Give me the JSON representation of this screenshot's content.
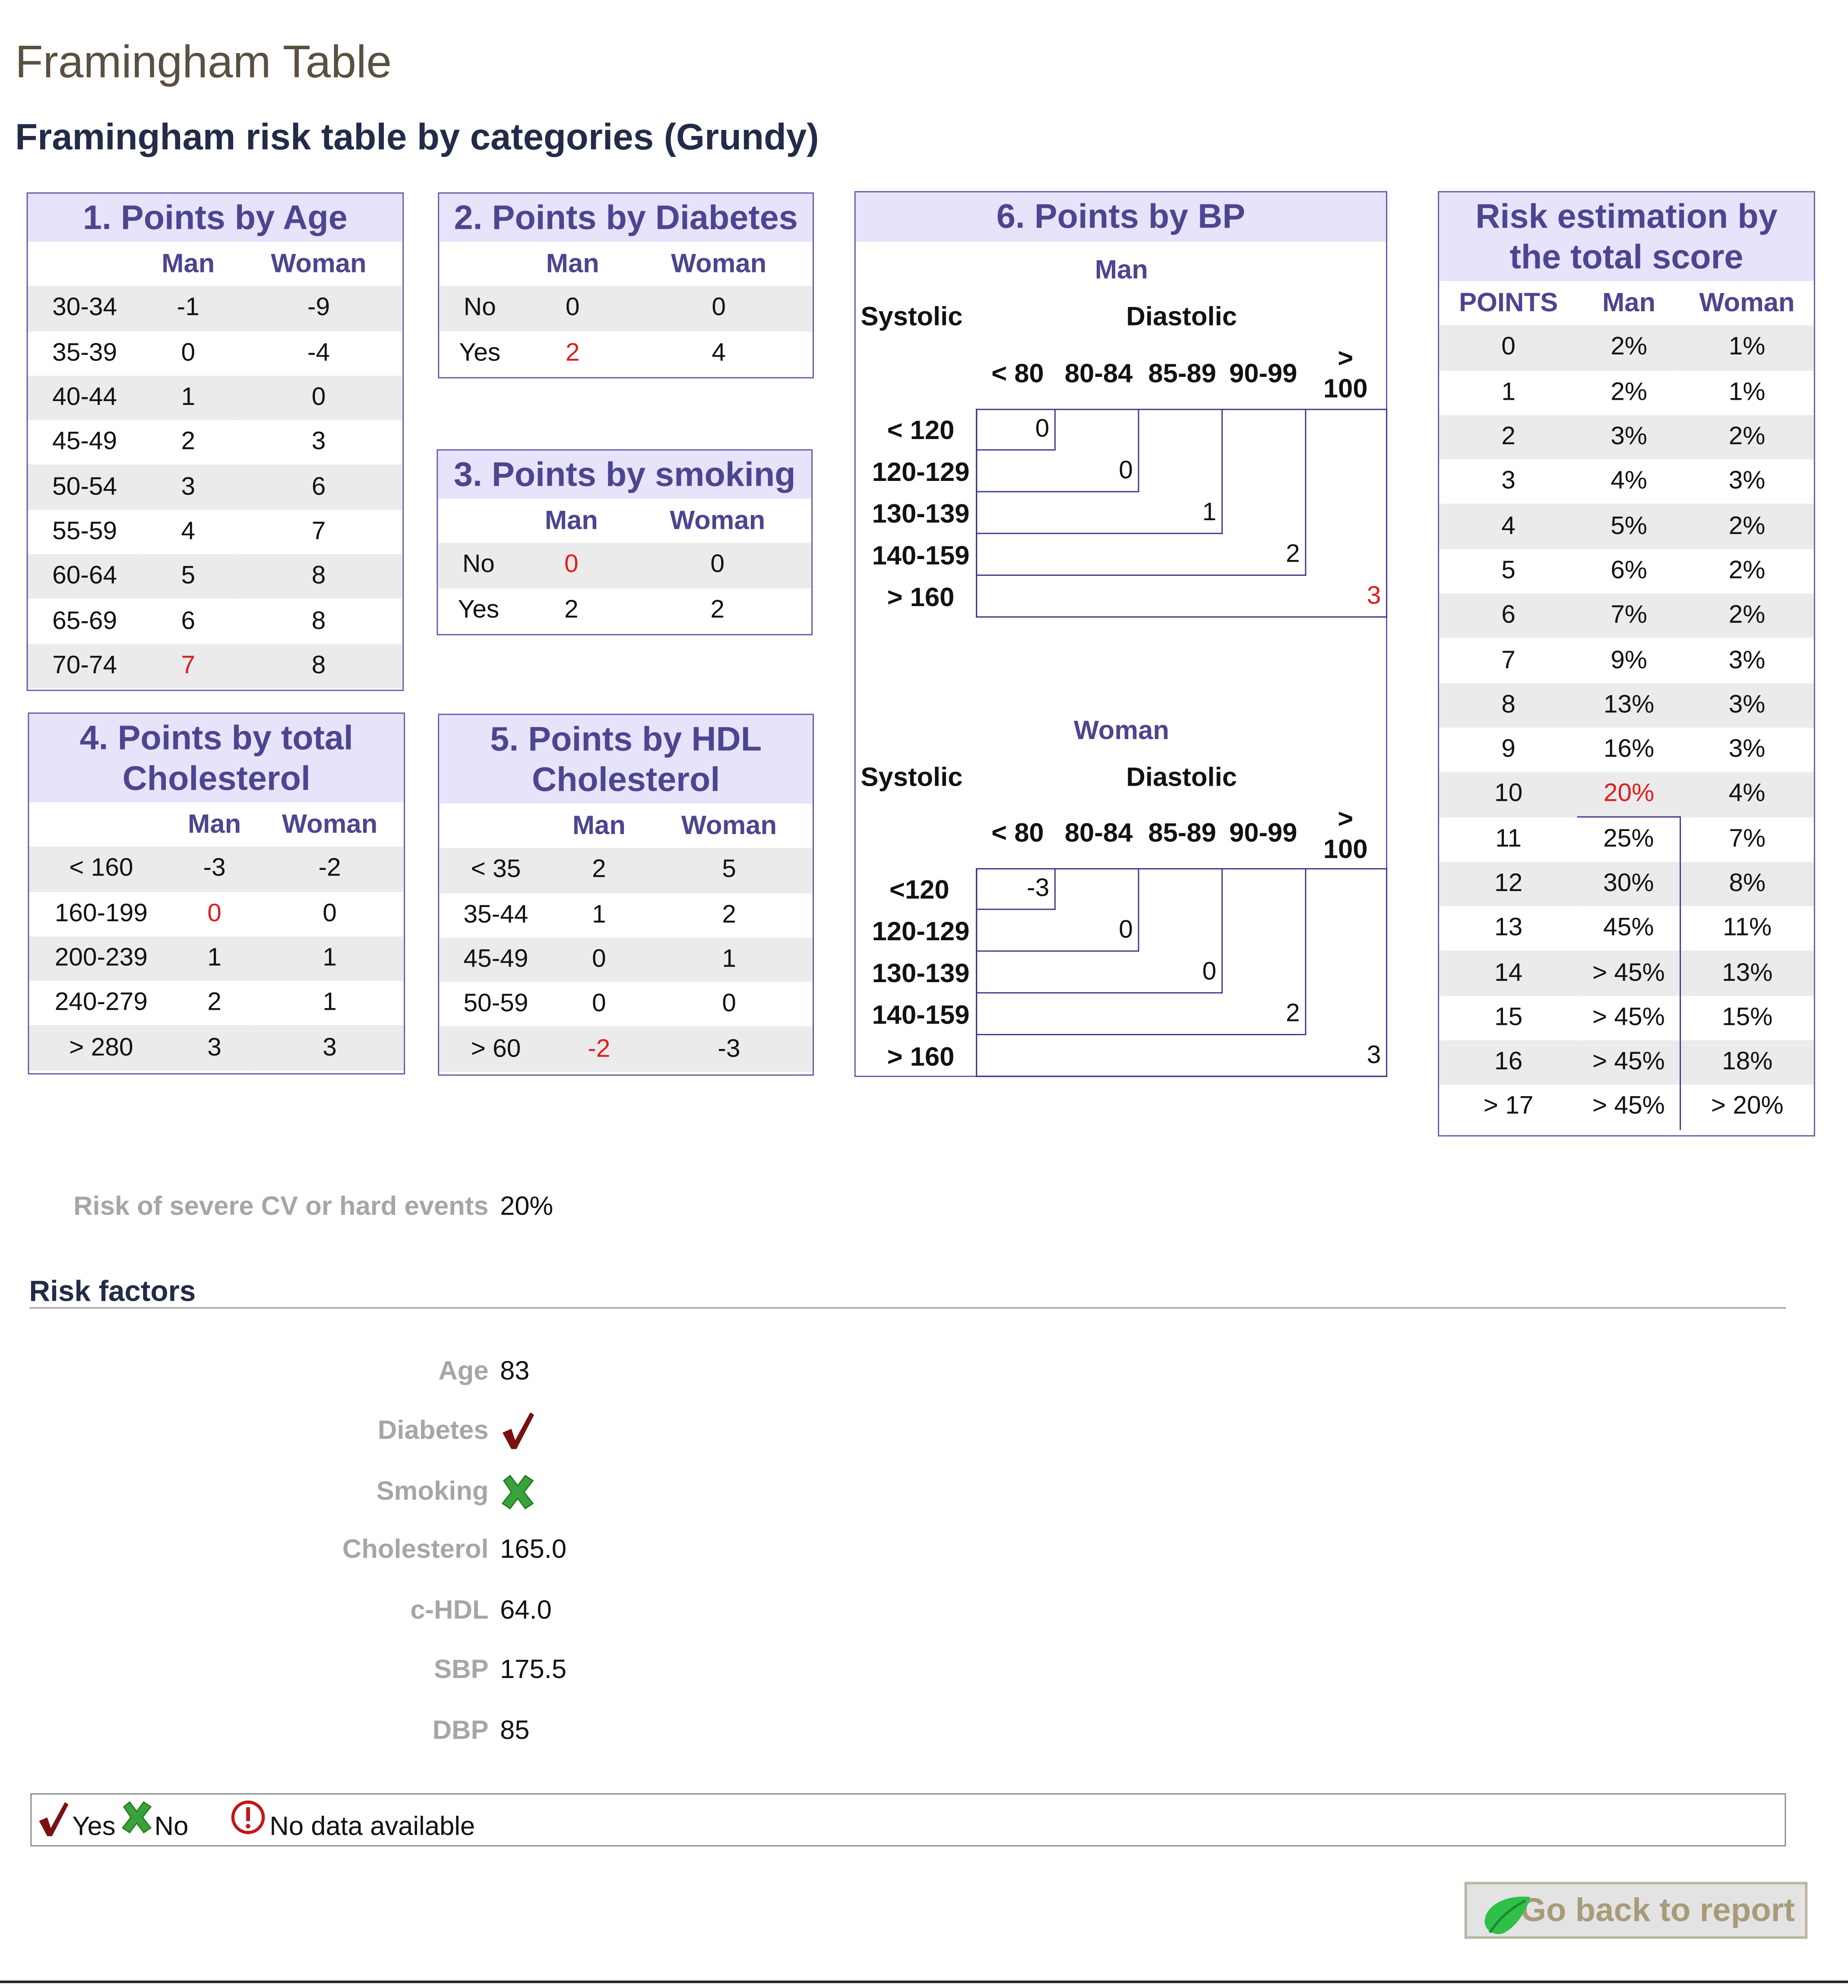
{
  "page": {
    "title": "Framingham Table",
    "subtitle": "Framingham risk table by categories (Grundy)"
  },
  "age": {
    "title": "1. Points by Age",
    "cols": [
      "Man",
      "Woman"
    ],
    "rows": [
      {
        "label": "30-34",
        "man": "-1",
        "woman": "-9"
      },
      {
        "label": "35-39",
        "man": "0",
        "woman": "-4"
      },
      {
        "label": "40-44",
        "man": "1",
        "woman": "0"
      },
      {
        "label": "45-49",
        "man": "2",
        "woman": "3"
      },
      {
        "label": "50-54",
        "man": "3",
        "woman": "6"
      },
      {
        "label": "55-59",
        "man": "4",
        "woman": "7"
      },
      {
        "label": "60-64",
        "man": "5",
        "woman": "8"
      },
      {
        "label": "65-69",
        "man": "6",
        "woman": "8"
      },
      {
        "label": "70-74",
        "man": "7",
        "woman": "8"
      }
    ]
  },
  "diabetes": {
    "title": "2. Points by Diabetes",
    "cols": [
      "Man",
      "Woman"
    ],
    "rows": [
      {
        "label": "No",
        "man": "0",
        "woman": "0"
      },
      {
        "label": "Yes",
        "man": "2",
        "woman": "4"
      }
    ]
  },
  "smoking": {
    "title": "3. Points by smoking",
    "cols": [
      "Man",
      "Woman"
    ],
    "rows": [
      {
        "label": "No",
        "man": "0",
        "woman": "0"
      },
      {
        "label": "Yes",
        "man": "2",
        "woman": "2"
      }
    ]
  },
  "cholesterol": {
    "title_line1": "4. Points by total",
    "title_line2": "Cholesterol",
    "cols": [
      "Man",
      "Woman"
    ],
    "rows": [
      {
        "label": "< 160",
        "man": "-3",
        "woman": "-2"
      },
      {
        "label": "160-199",
        "man": "0",
        "woman": "0"
      },
      {
        "label": "200-239",
        "man": "1",
        "woman": "1"
      },
      {
        "label": "240-279",
        "man": "2",
        "woman": "1"
      },
      {
        "label": "> 280",
        "man": "3",
        "woman": "3"
      }
    ]
  },
  "hdl": {
    "title_line1": "5. Points by HDL",
    "title_line2": "Cholesterol",
    "cols": [
      "Man",
      "Woman"
    ],
    "rows": [
      {
        "label": "< 35",
        "man": "2",
        "woman": "5"
      },
      {
        "label": "35-44",
        "man": "1",
        "woman": "2"
      },
      {
        "label": "45-49",
        "man": "0",
        "woman": "1"
      },
      {
        "label": "50-59",
        "man": "0",
        "woman": "0"
      },
      {
        "label": "> 60",
        "man": "-2",
        "woman": "-3"
      }
    ]
  },
  "bp": {
    "title": "6. Points by BP",
    "systolic": "Systolic",
    "diastolic": "Diastolic",
    "dia_cols": [
      "< 80",
      "80-84",
      "85-89",
      "90-99"
    ],
    "dia_last_1": ">",
    "dia_last_2": "100",
    "man": {
      "label": "Man",
      "rows": [
        "< 120",
        "120-129",
        "130-139",
        "140-159",
        "> 160"
      ],
      "values": [
        "0",
        "0",
        "1",
        "2",
        "3"
      ]
    },
    "woman": {
      "label": "Woman",
      "rows": [
        "<120",
        "120-129",
        "130-139",
        "140-159",
        "> 160"
      ],
      "values": [
        "-3",
        "0",
        "0",
        "2",
        "3"
      ]
    }
  },
  "risk": {
    "title_line1": "Risk estimation by",
    "title_line2": "the total score",
    "cols": [
      "POINTS",
      "Man",
      "Woman"
    ],
    "rows": [
      {
        "points": "0",
        "man": "2%",
        "woman": "1%"
      },
      {
        "points": "1",
        "man": "2%",
        "woman": "1%"
      },
      {
        "points": "2",
        "man": "3%",
        "woman": "2%"
      },
      {
        "points": "3",
        "man": "4%",
        "woman": "3%"
      },
      {
        "points": "4",
        "man": "5%",
        "woman": "2%"
      },
      {
        "points": "5",
        "man": "6%",
        "woman": "2%"
      },
      {
        "points": "6",
        "man": "7%",
        "woman": "2%"
      },
      {
        "points": "7",
        "man": "9%",
        "woman": "3%"
      },
      {
        "points": "8",
        "man": "13%",
        "woman": "3%"
      },
      {
        "points": "9",
        "man": "16%",
        "woman": "3%"
      },
      {
        "points": "10",
        "man": "20%",
        "woman": "4%"
      },
      {
        "points": "11",
        "man": "25%",
        "woman": "7%"
      },
      {
        "points": "12",
        "man": "30%",
        "woman": "8%"
      },
      {
        "points": "13",
        "man": "45%",
        "woman": "11%"
      },
      {
        "points": "14",
        "man": "> 45%",
        "woman": "13%"
      },
      {
        "points": "15",
        "man": "> 45%",
        "woman": "15%"
      },
      {
        "points": "16",
        "man": "> 45%",
        "woman": "18%"
      },
      {
        "points": "> 17",
        "man": "> 45%",
        "woman": "> 20%"
      }
    ]
  },
  "result": {
    "label": "Risk of severe CV or hard events",
    "value": "20%"
  },
  "factors": {
    "title": "Risk factors",
    "age_label": "Age",
    "age_value": "83",
    "diabetes_label": "Diabetes",
    "diabetes_icon": "checkmark-icon",
    "smoking_label": "Smoking",
    "smoking_icon": "cross-icon",
    "cholesterol_label": "Cholesterol",
    "cholesterol_value": "165.0",
    "hdl_label": "c-HDL",
    "hdl_value": "64.0",
    "sbp_label": "SBP",
    "sbp_value": "175.5",
    "dbp_label": "DBP",
    "dbp_value": "85"
  },
  "legend": {
    "yes": "Yes",
    "no": "No",
    "na": "No data available"
  },
  "button": {
    "label": "Go back to report"
  },
  "colors": {
    "highlight": "#e21c1c",
    "header_bg": "#e6e3fb",
    "header_text": "#4c4590"
  }
}
